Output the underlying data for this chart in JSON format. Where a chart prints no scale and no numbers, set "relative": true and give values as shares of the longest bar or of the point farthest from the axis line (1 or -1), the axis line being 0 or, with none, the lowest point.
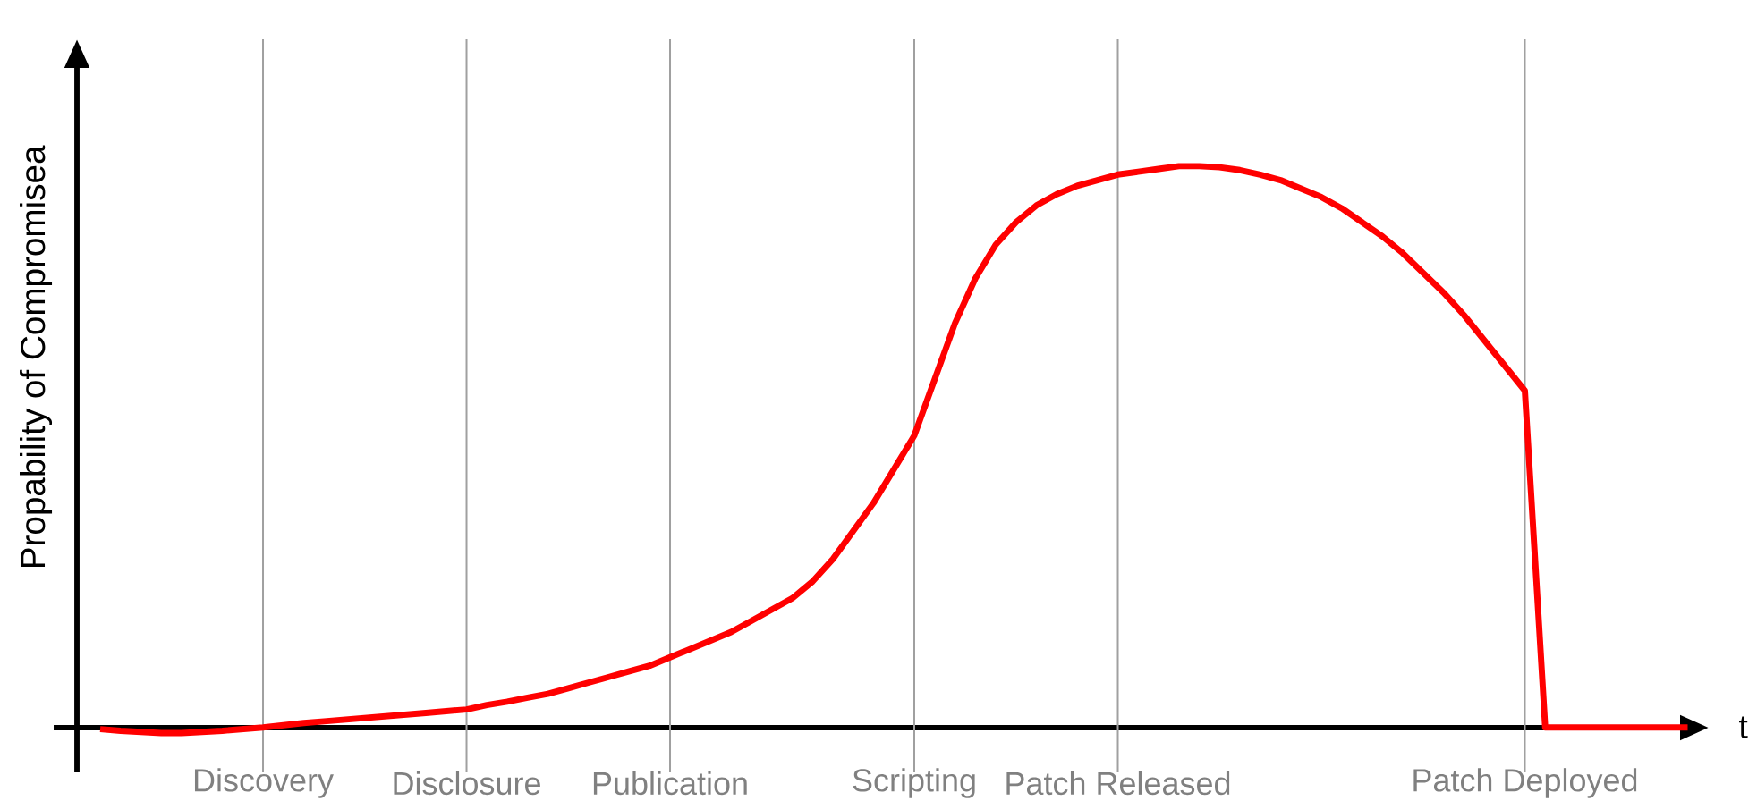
{
  "chart_data": {
    "type": "line",
    "relative": true,
    "xlabel": "t",
    "ylabel": "Propability of Compromisea",
    "grid": "x",
    "categories": [
      null,
      null,
      null,
      null,
      null,
      null,
      null,
      null,
      "Discovery",
      null,
      null,
      null,
      null,
      null,
      null,
      null,
      null,
      null,
      "Disclosure",
      null,
      null,
      null,
      null,
      null,
      null,
      null,
      null,
      null,
      "Publication",
      null,
      null,
      null,
      null,
      null,
      null,
      null,
      null,
      null,
      null,
      null,
      "Scripting",
      null,
      null,
      null,
      null,
      null,
      null,
      null,
      null,
      null,
      "Patch Released",
      null,
      null,
      null,
      null,
      null,
      null,
      null,
      null,
      null,
      null,
      null,
      null,
      null,
      null,
      null,
      null,
      null,
      null,
      null,
      "Patch Deployed",
      null,
      null,
      null,
      null,
      null,
      null,
      null,
      null
    ],
    "series": [
      {
        "color": "#ff0000",
        "values": [
          -0.003,
          -0.006,
          -0.008,
          -0.01,
          -0.01,
          -0.008,
          -0.006,
          -0.003,
          0,
          0.004,
          0.008,
          0.011,
          0.014,
          0.017,
          0.02,
          0.023,
          0.026,
          0.029,
          0.032,
          0.04,
          0.046,
          0.053,
          0.06,
          0.07,
          0.08,
          0.09,
          0.1,
          0.11,
          0.125,
          0.14,
          0.155,
          0.17,
          0.19,
          0.21,
          0.23,
          0.26,
          0.3,
          0.35,
          0.4,
          0.46,
          0.52,
          0.62,
          0.72,
          0.8,
          0.86,
          0.9,
          0.93,
          0.95,
          0.965,
          0.975,
          0.985,
          0.99,
          0.995,
          1.0,
          1.0,
          0.998,
          0.993,
          0.985,
          0.975,
          0.96,
          0.945,
          0.925,
          0.9,
          0.875,
          0.845,
          0.81,
          0.775,
          0.735,
          0.69,
          0.645,
          0.6,
          0,
          0,
          0,
          0,
          0,
          0,
          0,
          0
        ]
      }
    ]
  }
}
